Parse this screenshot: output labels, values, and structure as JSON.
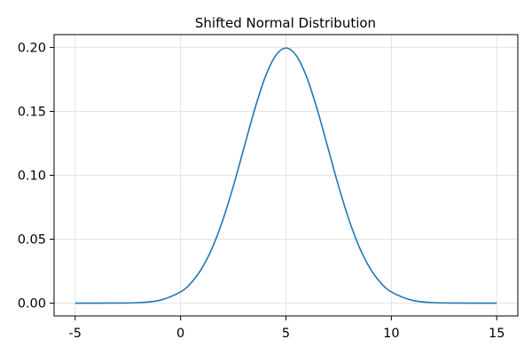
{
  "chart_data": {
    "type": "line",
    "title": "Shifted Normal Distribution",
    "xlabel": "",
    "ylabel": "",
    "xlim": [
      -6,
      16
    ],
    "ylim": [
      -0.01,
      0.21
    ],
    "grid": true,
    "legend": "none",
    "x_ticks": [
      -5,
      0,
      5,
      10,
      15
    ],
    "x_tick_labels": [
      "-5",
      "0",
      "5",
      "10",
      "15"
    ],
    "y_ticks": [
      0.0,
      0.05,
      0.1,
      0.15,
      0.2
    ],
    "y_tick_labels": [
      "0.00",
      "0.05",
      "0.10",
      "0.15",
      "0.20"
    ],
    "series": [
      {
        "color": "#1f77b4",
        "x": [
          -5,
          -4,
          -3,
          -2,
          -1,
          0,
          0.5,
          1,
          1.5,
          2,
          2.5,
          3,
          3.5,
          4,
          4.5,
          5,
          5.5,
          6,
          6.5,
          7,
          7.5,
          8,
          8.5,
          9,
          9.5,
          10,
          11,
          12,
          13,
          14,
          15
        ],
        "y": [
          0.0,
          0.0,
          0.0001,
          0.0004,
          0.0022,
          0.0088,
          0.0159,
          0.027,
          0.0431,
          0.0648,
          0.0913,
          0.121,
          0.1506,
          0.1761,
          0.1933,
          0.1995,
          0.1933,
          0.1761,
          0.1506,
          0.121,
          0.0913,
          0.0648,
          0.0431,
          0.027,
          0.0159,
          0.0088,
          0.0022,
          0.0004,
          0.0001,
          0.0,
          0.0
        ]
      }
    ]
  }
}
